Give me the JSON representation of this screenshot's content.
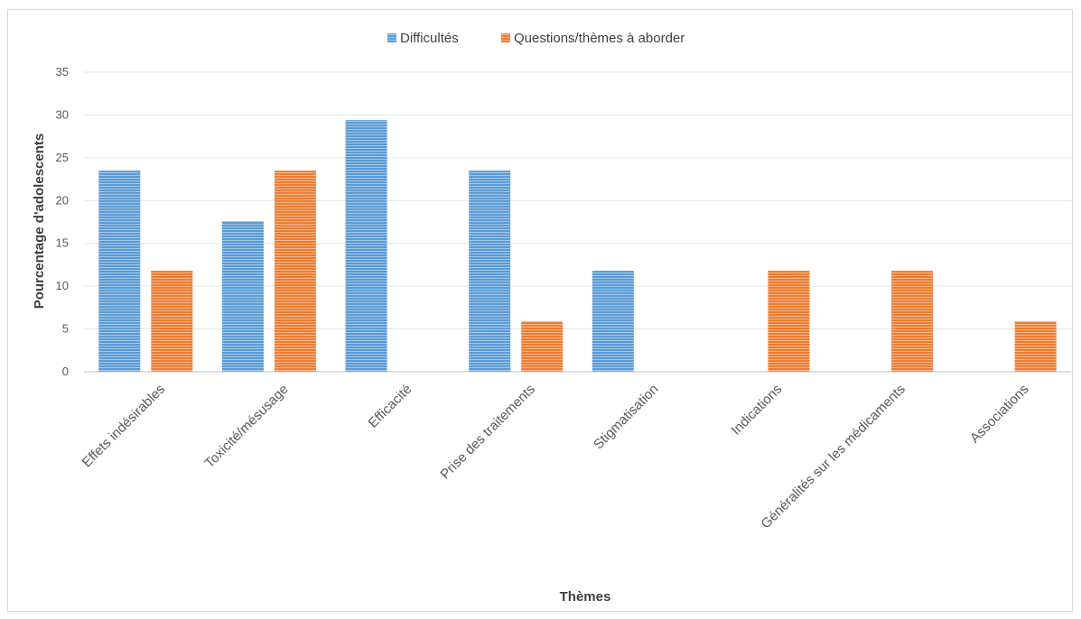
{
  "chart_data": {
    "type": "bar",
    "categories": [
      "Effets indésirables",
      "Toxicité/mésusage",
      "Efficacité",
      "Prise des traitements",
      "Stigmatisation",
      "Indications",
      "Généralités sur les médicaments",
      "Associations"
    ],
    "series": [
      {
        "name": "Difficultés",
        "color": "#5b9bd5",
        "values": [
          23.5,
          17.6,
          29.4,
          23.5,
          11.8,
          0,
          0,
          0
        ]
      },
      {
        "name": "Questions/thèmes à aborder",
        "color": "#ed7d31",
        "values": [
          11.8,
          23.5,
          0,
          5.9,
          0,
          11.8,
          11.8,
          5.9
        ]
      }
    ],
    "xlabel": "Thèmes",
    "ylabel": "Pourcentage d'adolescents",
    "ylim": [
      0,
      35
    ],
    "yticks": [
      0,
      5,
      10,
      15,
      20,
      25,
      30,
      35
    ],
    "grid": true,
    "legend_position": "top"
  }
}
